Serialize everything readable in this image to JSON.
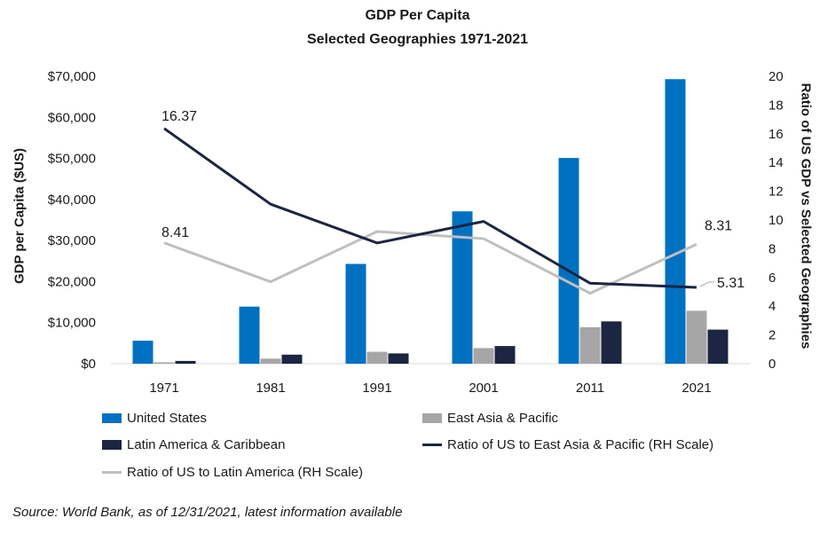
{
  "chart_data": {
    "type": "bar",
    "title": "GDP Per Capita",
    "subtitle": "Selected Geographies  1971-2021",
    "categories": [
      "1971",
      "1981",
      "1991",
      "2001",
      "2011",
      "2021"
    ],
    "ylabel": "GDP per Capita ($US)",
    "y2label": "Ratio of US GDP vs Selected Geographies",
    "ylim": [
      0,
      70000
    ],
    "y2lim": [
      0,
      20
    ],
    "y_ticks": [
      "$0",
      "$10,000",
      "$20,000",
      "$30,000",
      "$40,000",
      "$50,000",
      "$60,000",
      "$70,000"
    ],
    "y2_ticks": [
      "0",
      "2",
      "4",
      "6",
      "8",
      "10",
      "12",
      "14",
      "16",
      "18",
      "20"
    ],
    "bar_series": [
      {
        "name": "United States",
        "color": "#0070c0",
        "values": [
          5600,
          13900,
          24300,
          37100,
          50100,
          69300
        ]
      },
      {
        "name": "East Asia & Pacific",
        "color": "#a6a6a6",
        "values": [
          330,
          1230,
          2900,
          3800,
          8900,
          12900
        ]
      },
      {
        "name": "Latin America & Caribbean",
        "color": "#1c2541",
        "values": [
          670,
          2200,
          2500,
          4300,
          10300,
          8300
        ]
      }
    ],
    "line_series": [
      {
        "name": "Ratio of US to East Asia & Pacific (RH Scale)",
        "color": "#1c2541",
        "values": [
          16.37,
          11.1,
          8.4,
          9.9,
          5.6,
          5.31
        ]
      },
      {
        "name": "Ratio of US to Latin America (RH Scale)",
        "color": "#bfbfbf",
        "values": [
          8.41,
          5.7,
          9.2,
          8.7,
          4.9,
          8.31
        ]
      }
    ],
    "annotations": [
      {
        "text": "16.37"
      },
      {
        "text": "8.41"
      },
      {
        "text": "8.31"
      },
      {
        "text": "5.31"
      }
    ],
    "legend": "bottom",
    "grid": false
  },
  "source": "Source: World Bank, as of 12/31/2021, latest information available"
}
